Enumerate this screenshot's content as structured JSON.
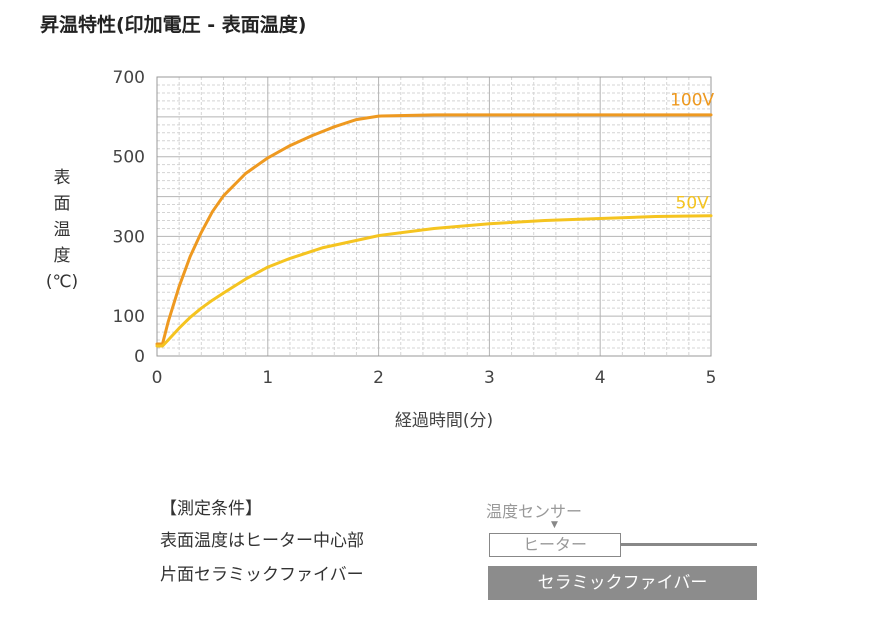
{
  "chart_data": {
    "type": "line",
    "title": "昇温特性(印加電圧 - 表面温度)",
    "xlabel": "経過時間(分)",
    "ylabel_chars": [
      "表",
      "面",
      "温",
      "度",
      "(℃)"
    ],
    "xlim": [
      0,
      5
    ],
    "ylim": [
      0,
      700
    ],
    "x_ticks": [
      "0",
      "1",
      "2",
      "3",
      "4",
      "5"
    ],
    "y_ticks": [
      {
        "value": 0,
        "label": "0"
      },
      {
        "value": 100,
        "label": "100"
      },
      {
        "value": 300,
        "label": "300"
      },
      {
        "value": 500,
        "label": "500"
      },
      {
        "value": 700,
        "label": "700"
      }
    ],
    "grid": true,
    "series": [
      {
        "name": "100V",
        "color": "#ee9920",
        "x": [
          0,
          0.05,
          0.1,
          0.2,
          0.3,
          0.4,
          0.5,
          0.6,
          0.8,
          1.0,
          1.2,
          1.4,
          1.6,
          1.8,
          2.0,
          2.5,
          3.0,
          3.5,
          4.0,
          4.5,
          5.0
        ],
        "y": [
          30,
          30,
          85,
          175,
          250,
          310,
          362,
          402,
          458,
          497,
          528,
          553,
          575,
          593,
          602,
          605,
          605,
          605,
          605,
          605,
          605
        ]
      },
      {
        "name": "50V",
        "color": "#f5c420",
        "x": [
          0,
          0.05,
          0.1,
          0.2,
          0.3,
          0.4,
          0.5,
          0.6,
          0.8,
          1.0,
          1.2,
          1.5,
          2.0,
          2.5,
          3.0,
          3.5,
          4.0,
          4.5,
          5.0
        ],
        "y": [
          25,
          25,
          40,
          70,
          97,
          120,
          140,
          158,
          193,
          223,
          245,
          272,
          302,
          320,
          332,
          340,
          345,
          350,
          352
        ]
      }
    ]
  },
  "conditions": {
    "heading": "【測定条件】",
    "line1": "表面温度はヒーター中心部",
    "line2": "片面セラミックファイバー"
  },
  "diagram": {
    "sensor_label": "温度センサー",
    "arrow": "▼",
    "heater_label": "ヒーター",
    "fiber_label": "セラミックファイバー"
  }
}
